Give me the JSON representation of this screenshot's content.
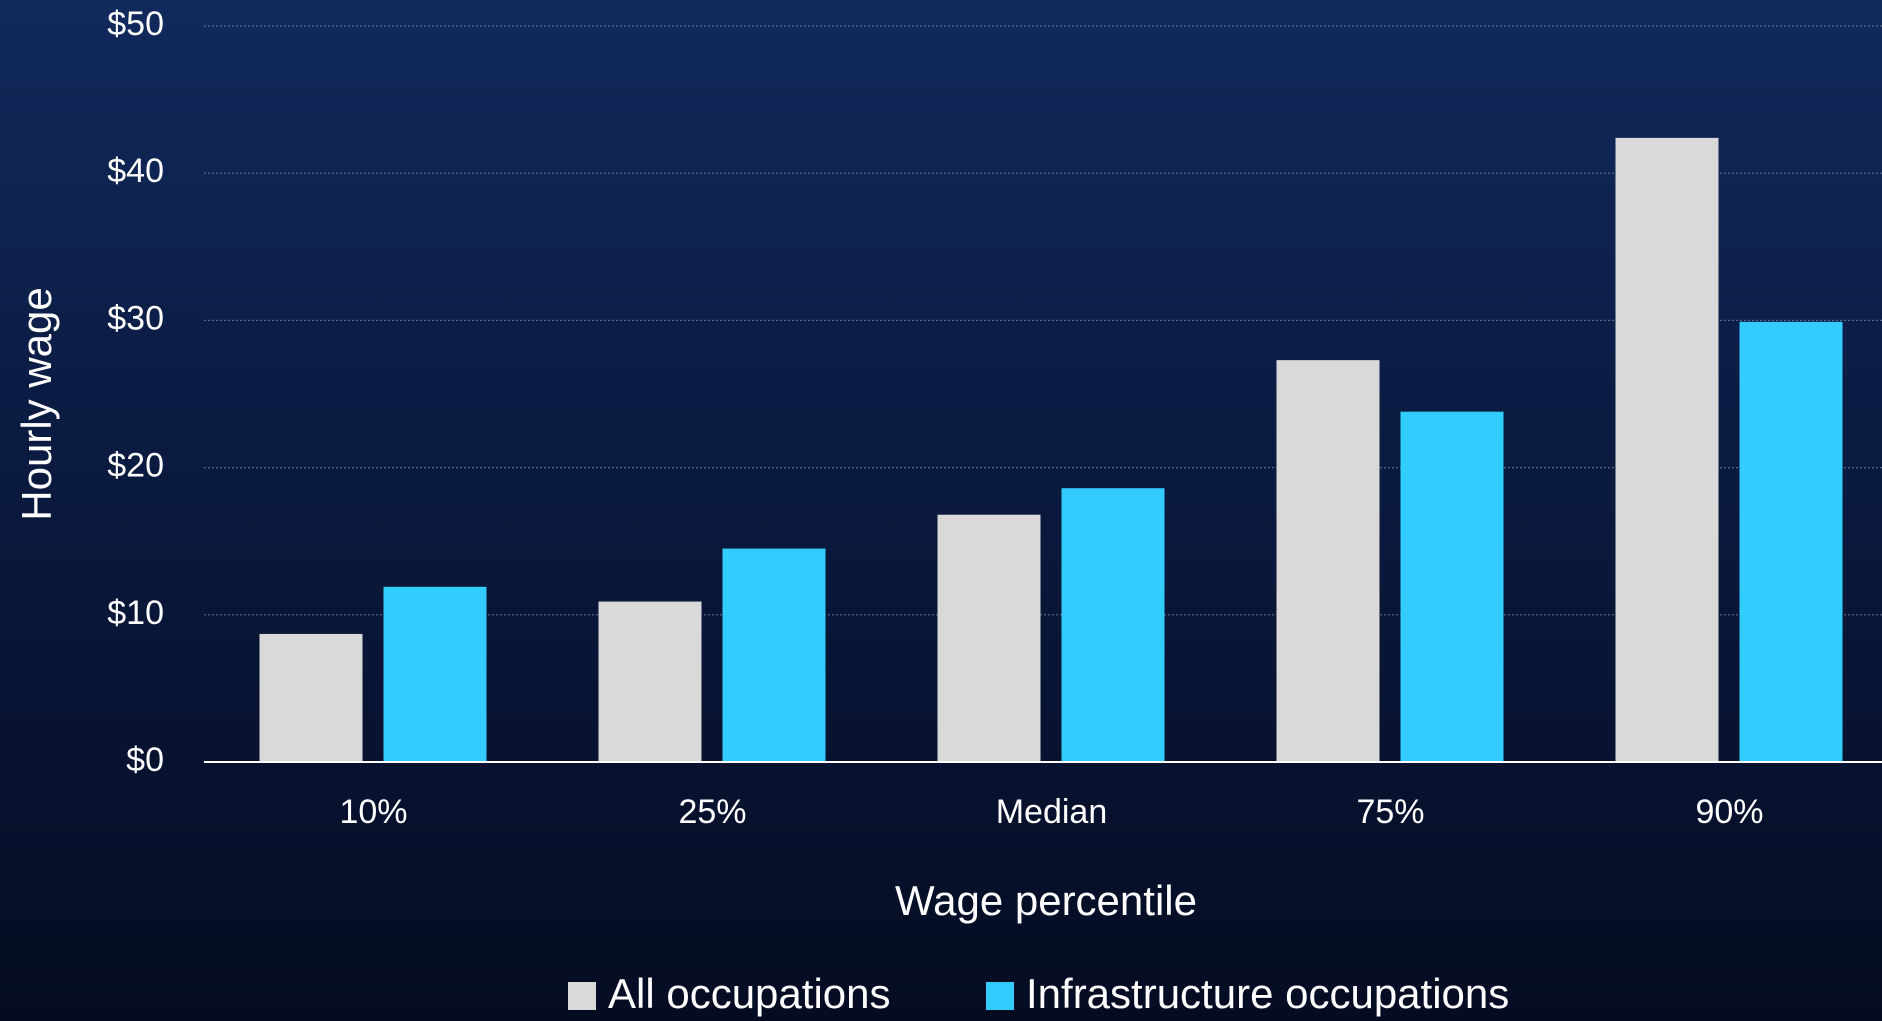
{
  "chart_data": {
    "type": "bar",
    "categories": [
      "10%",
      "25%",
      "Median",
      "75%",
      "90%"
    ],
    "series": [
      {
        "name": "All occupations",
        "color": "#d9d9d9",
        "values": [
          8.7,
          10.9,
          16.8,
          27.3,
          42.4
        ]
      },
      {
        "name": "Infrastructure occupations",
        "color": "#33ccff",
        "values": [
          11.9,
          14.5,
          18.6,
          23.8,
          29.9
        ]
      }
    ],
    "x_label": "Wage percentile",
    "y_label": "Hourly wage",
    "ylim": [
      0,
      50
    ],
    "yticks": [
      {
        "value": 0,
        "label": "$0"
      },
      {
        "value": 10,
        "label": "$10"
      },
      {
        "value": 20,
        "label": "$20"
      },
      {
        "value": 30,
        "label": "$30"
      },
      {
        "value": 40,
        "label": "$40"
      },
      {
        "value": 50,
        "label": "$50"
      }
    ],
    "grid": true,
    "legend": "bottom"
  }
}
